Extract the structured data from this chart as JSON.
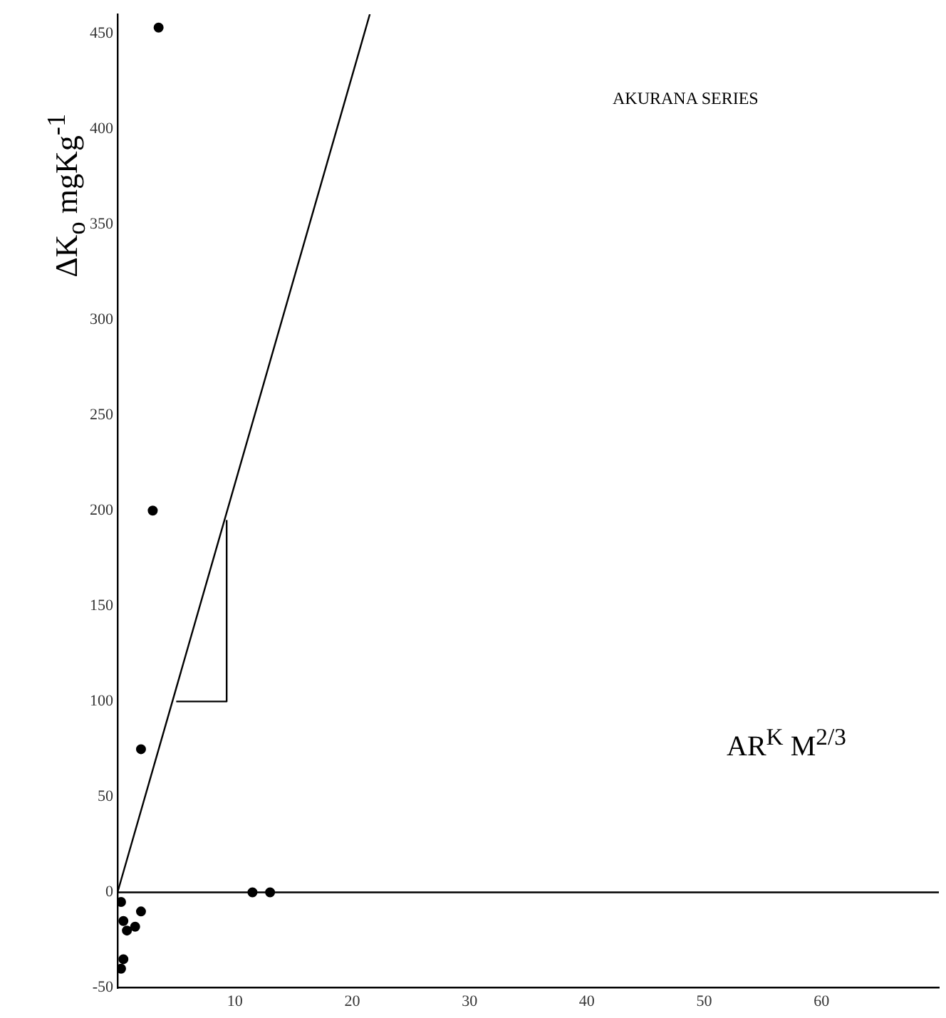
{
  "chart_data": {
    "type": "scatter",
    "title": "AKURANA SERIES",
    "xlabel": "AR$^{K}$ M$^{2/3}$",
    "ylabel": "ΔK$_{o}$ mgKg$^{-1}$",
    "xlim": [
      0,
      70
    ],
    "xticks": [
      10,
      20,
      30,
      40,
      50,
      60
    ],
    "ylim": [
      -50,
      460
    ],
    "yticks": [
      -50,
      0,
      50,
      100,
      150,
      200,
      250,
      300,
      350,
      400,
      450
    ],
    "grid": false,
    "legend": false,
    "marker": "circle",
    "ref_lines": [
      {
        "axis": "y",
        "value": 0,
        "color": "#000000"
      }
    ],
    "series": [
      {
        "color": "#000000",
        "x": [
          3.5,
          3,
          2,
          11.5,
          13,
          2,
          0.3,
          0.5,
          0.8,
          1.5,
          0.3,
          0.5
        ],
        "values": [
          453,
          200,
          75,
          0,
          0,
          -10,
          -5,
          -15,
          -20,
          -18,
          -40,
          -35
        ]
      },
      {
        "type": "line",
        "marker": "none",
        "color": "#000000",
        "x": [
          0,
          21.5
        ],
        "values": [
          0,
          460
        ]
      },
      {
        "type": "line",
        "marker": "none",
        "color": "#000000",
        "x": [
          5,
          9.3,
          9.3
        ],
        "values": [
          100,
          100,
          195
        ]
      }
    ]
  }
}
